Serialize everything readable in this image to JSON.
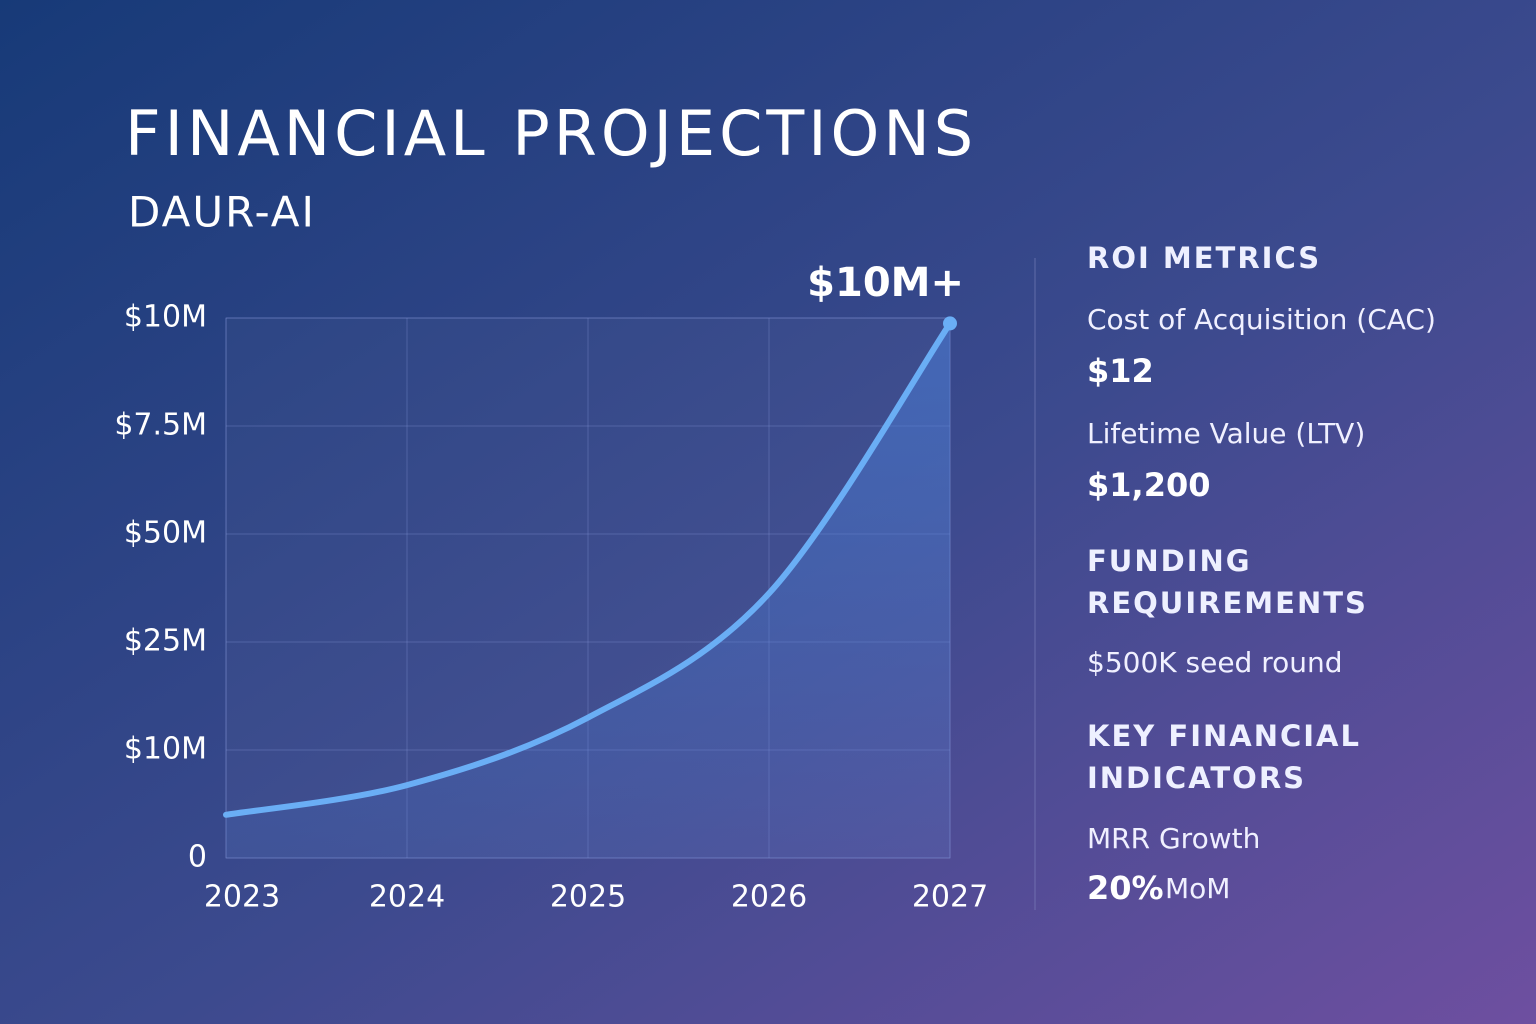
{
  "header": {
    "title": "FINANCIAL PROJECTIONS",
    "subtitle": "DAUR-AI"
  },
  "chart_data": {
    "type": "line",
    "annotation": "$10M+",
    "x": [
      2023,
      2024,
      2025,
      2026,
      2027
    ],
    "xlim": [
      2023,
      2027
    ],
    "xticks": [
      2023,
      2024,
      2025,
      2026,
      2027
    ],
    "series": [
      {
        "color": "#6aaef5",
        "values": [
          0.8,
          1.35,
          2.6,
          4.9,
          9.9
        ]
      }
    ],
    "ylim": [
      0,
      10
    ],
    "yticks": [
      0,
      {
        "value": 10,
        "label": "$10M"
      },
      {
        "value": 25,
        "label": "$25M"
      },
      {
        "value": 50,
        "label": "$50M"
      },
      {
        "value": 7.5,
        "label": "$7.5M"
      },
      {
        "value": 10,
        "label": "$10M"
      }
    ],
    "grid": true
  },
  "sidebar": {
    "roi": {
      "heading": "ROI METRICS",
      "cac_label": "Cost of Acquisition (CAC)",
      "cac_value": "$12",
      "ltv_label": "Lifetime Value (LTV)",
      "ltv_value": "$1,200"
    },
    "funding": {
      "heading": [
        "FUNDING",
        "REQUIREMENTS"
      ],
      "text": "$500K seed round"
    },
    "kfi": {
      "heading": [
        "KEY FINANCIAL",
        "INDICATORS"
      ],
      "label": "MRR Growth",
      "value": "20%",
      "unit": "MoM"
    }
  }
}
